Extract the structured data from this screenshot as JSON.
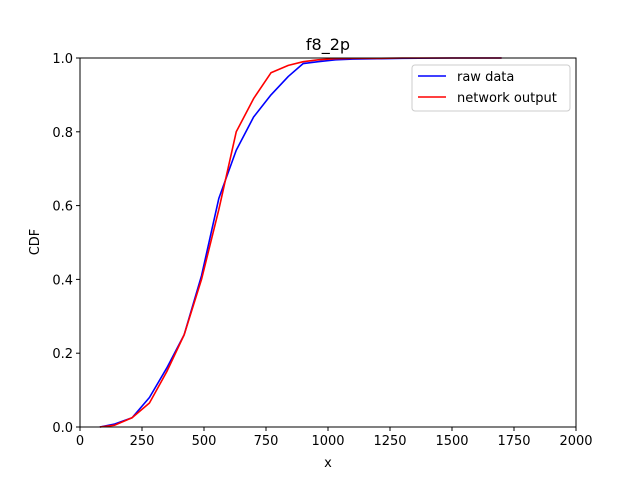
{
  "chart_data": {
    "type": "line",
    "title": "f8_2p",
    "xlabel": "x",
    "ylabel": "CDF",
    "xlim": [
      0,
      2000
    ],
    "ylim": [
      0,
      1
    ],
    "xticks": [
      0,
      250,
      500,
      750,
      1000,
      1250,
      1500,
      1750,
      2000
    ],
    "yticks": [
      0.0,
      0.2,
      0.4,
      0.6,
      0.8,
      1.0
    ],
    "xtick_labels": [
      "0",
      "250",
      "500",
      "750",
      "1000",
      "1250",
      "1500",
      "1750",
      "2000"
    ],
    "ytick_labels": [
      "0.0",
      "0.2",
      "0.4",
      "0.6",
      "0.8",
      "1.0"
    ],
    "grid": false,
    "legend_position": "top-right",
    "series": [
      {
        "name": "raw data",
        "color": "#0000ff",
        "x": [
          80,
          140,
          210,
          280,
          350,
          420,
          490,
          560,
          630,
          700,
          770,
          840,
          900,
          960,
          1030,
          1100,
          1200,
          1300,
          1500,
          1700
        ],
        "y": [
          0.0,
          0.008,
          0.025,
          0.08,
          0.16,
          0.25,
          0.41,
          0.62,
          0.75,
          0.84,
          0.9,
          0.95,
          0.985,
          0.99,
          0.995,
          0.997,
          0.998,
          0.999,
          1.0,
          1.0
        ]
      },
      {
        "name": "network output",
        "color": "#ff0000",
        "x": [
          80,
          140,
          210,
          280,
          350,
          420,
          490,
          560,
          630,
          700,
          770,
          840,
          900,
          960,
          1030,
          1100,
          1200,
          1300,
          1500,
          1700
        ],
        "y": [
          0.0,
          0.005,
          0.025,
          0.065,
          0.15,
          0.25,
          0.4,
          0.59,
          0.8,
          0.89,
          0.96,
          0.98,
          0.99,
          0.995,
          0.998,
          0.999,
          0.999,
          1.0,
          1.0,
          1.0
        ]
      }
    ]
  }
}
